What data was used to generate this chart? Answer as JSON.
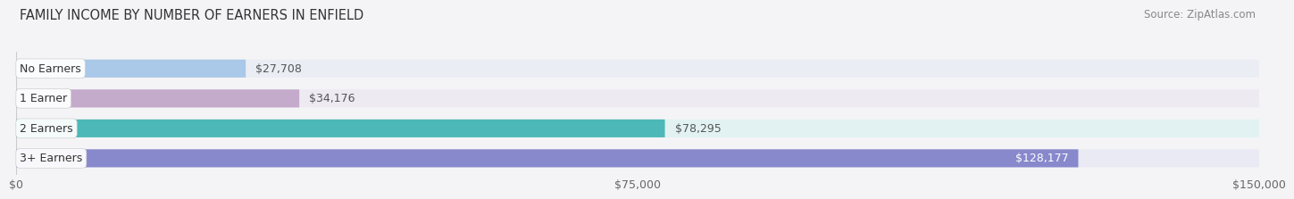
{
  "title": "FAMILY INCOME BY NUMBER OF EARNERS IN ENFIELD",
  "source": "Source: ZipAtlas.com",
  "categories": [
    "No Earners",
    "1 Earner",
    "2 Earners",
    "3+ Earners"
  ],
  "values": [
    27708,
    34176,
    78295,
    128177
  ],
  "labels": [
    "$27,708",
    "$34,176",
    "$78,295",
    "$128,177"
  ],
  "bar_colors": [
    "#aac8e8",
    "#c4aacb",
    "#4db8b8",
    "#8888cc"
  ],
  "bar_bg_colors": [
    "#eaeef4",
    "#eeeaf2",
    "#e2f2f2",
    "#eaeaf5"
  ],
  "label_outside": [
    true,
    true,
    true,
    false
  ],
  "xlim": [
    0,
    150000
  ],
  "xtick_values": [
    0,
    75000,
    150000
  ],
  "xtick_labels": [
    "$0",
    "$75,000",
    "$150,000"
  ],
  "title_fontsize": 10.5,
  "source_fontsize": 8.5,
  "label_fontsize": 9,
  "tick_fontsize": 9,
  "bar_height": 0.6,
  "background_color": "#f4f4f6"
}
